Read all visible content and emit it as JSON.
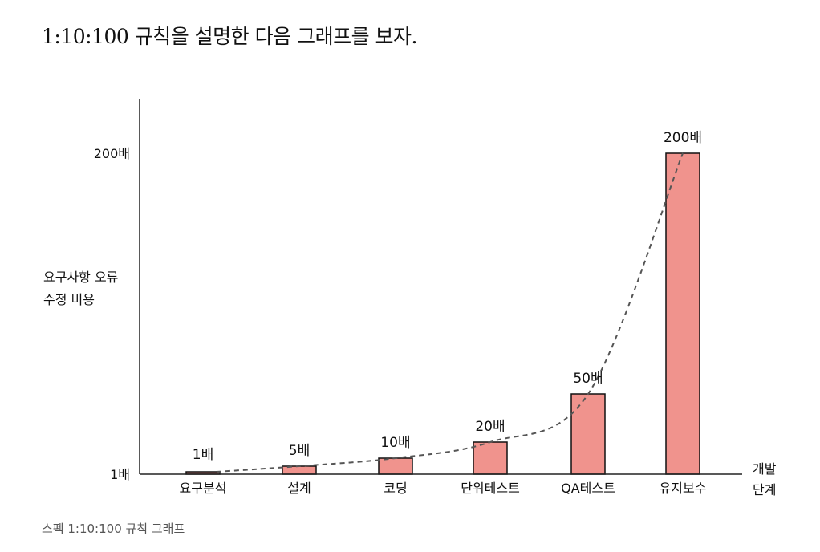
{
  "heading": "1:10:100 규칙을 설명한 다음 그래프를 보자.",
  "caption": "스펙 1:10:100 규칙 그래프",
  "chart_data": {
    "type": "bar",
    "categories": [
      "요구분석",
      "설계",
      "코딩",
      "단위테스트",
      "QA테스트",
      "유지보수"
    ],
    "values": [
      1,
      5,
      10,
      20,
      50,
      200
    ],
    "value_labels": [
      "1배",
      "5배",
      "10배",
      "20배",
      "50배",
      "200배"
    ],
    "title": "",
    "ylabel_lines": [
      "요구사항 오류",
      "수정 비용"
    ],
    "xlabel_lines": [
      "개발",
      "단계"
    ],
    "y_ticks": [
      {
        "value": 1,
        "label": "1배"
      },
      {
        "value": 200,
        "label": "200배"
      }
    ],
    "ylim": [
      0,
      236
    ],
    "grid": false,
    "trend_line": "dashed",
    "colors": {
      "bar": "#f0938d",
      "bar_stroke": "#111111",
      "axis": "#222222",
      "trend": "#555555"
    }
  }
}
